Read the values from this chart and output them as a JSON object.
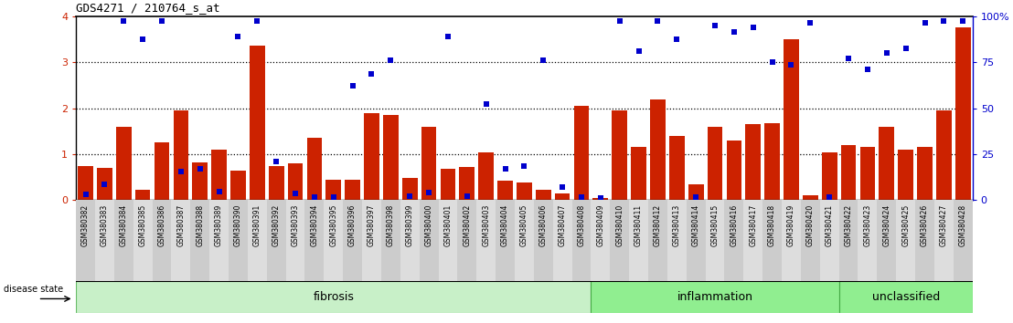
{
  "title": "GDS4271 / 210764_s_at",
  "samples": [
    "GSM380382",
    "GSM380383",
    "GSM380384",
    "GSM380385",
    "GSM380386",
    "GSM380387",
    "GSM380388",
    "GSM380389",
    "GSM380390",
    "GSM380391",
    "GSM380392",
    "GSM380393",
    "GSM380394",
    "GSM380395",
    "GSM380396",
    "GSM380397",
    "GSM380398",
    "GSM380399",
    "GSM380400",
    "GSM380401",
    "GSM380402",
    "GSM380403",
    "GSM380404",
    "GSM380405",
    "GSM380406",
    "GSM380407",
    "GSM380408",
    "GSM380409",
    "GSM380410",
    "GSM380411",
    "GSM380412",
    "GSM380413",
    "GSM380414",
    "GSM380415",
    "GSM380416",
    "GSM380417",
    "GSM380418",
    "GSM380419",
    "GSM380420",
    "GSM380421",
    "GSM380422",
    "GSM380423",
    "GSM380424",
    "GSM380425",
    "GSM380426",
    "GSM380427",
    "GSM380428"
  ],
  "transformed_count": [
    0.75,
    0.7,
    1.6,
    0.22,
    1.25,
    1.95,
    0.83,
    1.1,
    0.65,
    3.35,
    0.75,
    0.8,
    1.35,
    0.45,
    0.45,
    1.9,
    1.85,
    0.48,
    1.6,
    0.68,
    0.73,
    1.05,
    0.42,
    0.38,
    0.22,
    0.15,
    2.05,
    0.05,
    1.95,
    1.15,
    2.2,
    1.4,
    0.35,
    1.6,
    1.3,
    1.65,
    1.68,
    3.5,
    0.1,
    1.05,
    1.2,
    1.15,
    1.6,
    1.1,
    1.15,
    1.95,
    3.75
  ],
  "percentile_rank": [
    0.12,
    0.35,
    3.9,
    3.5,
    3.9,
    0.62,
    0.68,
    0.18,
    3.55,
    3.9,
    0.85,
    0.14,
    0.06,
    0.06,
    2.48,
    2.75,
    3.05,
    0.08,
    0.17,
    3.55,
    0.08,
    2.1,
    0.68,
    0.75,
    3.05,
    0.28,
    0.06,
    0.04,
    3.9,
    3.25,
    3.9,
    3.5,
    0.06,
    3.8,
    3.65,
    3.75,
    3.0,
    2.95,
    3.85,
    0.06,
    3.08,
    2.85,
    3.2,
    3.3,
    3.85,
    3.9,
    3.9
  ],
  "groups": [
    {
      "label": "fibrosis",
      "start": 0,
      "end": 26,
      "color": "#c8f0c8",
      "edgecolor": "#66bb66"
    },
    {
      "label": "inflammation",
      "start": 27,
      "end": 39,
      "color": "#90ee90",
      "edgecolor": "#44aa44"
    },
    {
      "label": "unclassified",
      "start": 40,
      "end": 46,
      "color": "#90ee90",
      "edgecolor": "#44aa44"
    }
  ],
  "bar_color": "#CC2200",
  "dot_color": "#0000CC",
  "ytick_color": "#CC2200",
  "ylim": [
    0,
    4
  ],
  "yticks": [
    0,
    1,
    2,
    3,
    4
  ],
  "y2labels": [
    "0",
    "25",
    "50",
    "75",
    "100%"
  ],
  "dotted_lines": [
    1,
    2,
    3
  ],
  "bg_color": "#FFFFFF",
  "plot_bg": "#FFFFFF",
  "xlabel_bg_odd": "#D8D8D8",
  "xlabel_bg_even": "#E8E8E8"
}
